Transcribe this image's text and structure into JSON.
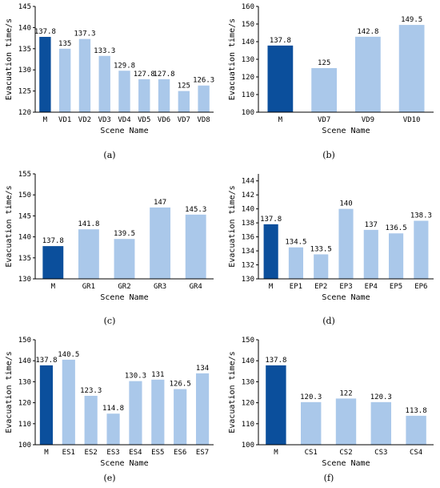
{
  "figure": {
    "colors": {
      "baseline_bar": "#0b4f9c",
      "scene_bar": "#aac8ea",
      "axis": "#000000"
    }
  },
  "chart_data": [
    {
      "panel": "(a)",
      "type": "bar",
      "xlabel": "Scene Name",
      "ylabel": "Evacuation time/s",
      "ylim": [
        120,
        145
      ],
      "yticks": [
        120,
        125,
        130,
        135,
        140,
        145
      ],
      "categories": [
        "M",
        "VD1",
        "VD2",
        "VD3",
        "VD4",
        "VD5",
        "VD6",
        "VD7",
        "VD8"
      ],
      "values": [
        137.8,
        135,
        137.3,
        133.3,
        129.8,
        127.8,
        127.8,
        125,
        126.3
      ],
      "value_labels": [
        "137.8",
        "135",
        "137.3",
        "133.3",
        "129.8",
        "127.8",
        "127.8",
        "125",
        "126.3"
      ]
    },
    {
      "panel": "(b)",
      "type": "bar",
      "xlabel": "Scene Name",
      "ylabel": "Evacuation time/s",
      "ylim": [
        100,
        160
      ],
      "yticks": [
        100,
        110,
        120,
        130,
        140,
        150,
        160
      ],
      "categories": [
        "M",
        "VD7",
        "VD9",
        "VD10"
      ],
      "values": [
        137.8,
        125,
        142.8,
        149.5
      ],
      "value_labels": [
        "137.8",
        "125",
        "142.8",
        "149.5"
      ]
    },
    {
      "panel": "(c)",
      "type": "bar",
      "xlabel": "Scene Name",
      "ylabel": "Evacuation time/s",
      "ylim": [
        130,
        155
      ],
      "yticks": [
        130,
        135,
        140,
        145,
        150,
        155
      ],
      "categories": [
        "M",
        "GR1",
        "GR2",
        "GR3",
        "GR4"
      ],
      "values": [
        137.8,
        141.8,
        139.5,
        147,
        145.3
      ],
      "value_labels": [
        "137.8",
        "141.8",
        "139.5",
        "147",
        "145.3"
      ]
    },
    {
      "panel": "(d)",
      "type": "bar",
      "xlabel": "Scene Name",
      "ylabel": "Evacuation time/s",
      "ylim": [
        130,
        145
      ],
      "yticks": [
        130,
        132,
        134,
        136,
        138,
        140,
        142,
        144
      ],
      "categories": [
        "M",
        "EP1",
        "EP2",
        "EP3",
        "EP4",
        "EP5",
        "EP6"
      ],
      "values": [
        137.8,
        134.5,
        133.5,
        140,
        137,
        136.5,
        138.3
      ],
      "value_labels": [
        "137.8",
        "134.5",
        "133.5",
        "140",
        "137",
        "136.5",
        "138.3"
      ]
    },
    {
      "panel": "(e)",
      "type": "bar",
      "xlabel": "Scene Name",
      "ylabel": "Evacuation time/s",
      "ylim": [
        100,
        150
      ],
      "yticks": [
        100,
        110,
        120,
        130,
        140,
        150
      ],
      "categories": [
        "M",
        "ES1",
        "ES2",
        "ES3",
        "ES4",
        "ES5",
        "ES6",
        "ES7"
      ],
      "values": [
        137.8,
        140.5,
        123.3,
        114.8,
        130.3,
        131,
        126.5,
        134
      ],
      "value_labels": [
        "137.8",
        "140.5",
        "123.3",
        "114.8",
        "130.3",
        "131",
        "126.5",
        "134"
      ]
    },
    {
      "panel": "(f)",
      "type": "bar",
      "xlabel": "Scene Name",
      "ylabel": "Evacuation time/s",
      "ylim": [
        100,
        150
      ],
      "yticks": [
        100,
        110,
        120,
        130,
        140,
        150
      ],
      "categories": [
        "M",
        "CS1",
        "CS2",
        "CS3",
        "CS4"
      ],
      "values": [
        137.8,
        120.3,
        122,
        120.3,
        113.8
      ],
      "value_labels": [
        "137.8",
        "120.3",
        "122",
        "120.3",
        "113.8"
      ]
    }
  ]
}
